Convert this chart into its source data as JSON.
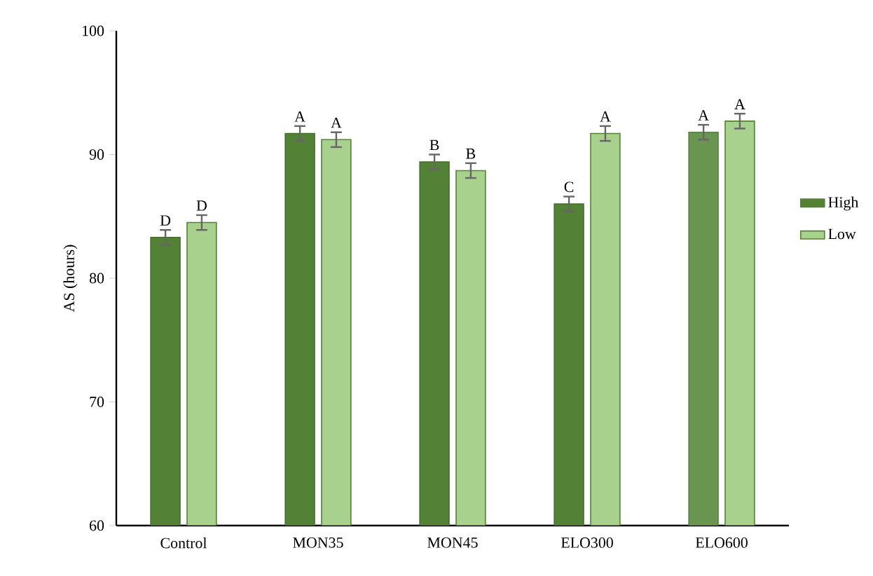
{
  "chart_data": {
    "type": "bar",
    "ylabel": "AS (hours)",
    "categories": [
      "Control",
      "MON35",
      "MON45",
      "ELO300",
      "ELO600"
    ],
    "series": [
      {
        "name": "High",
        "color": "#538135",
        "colors": [
          "#538135",
          "#538135",
          "#538135",
          "#538135",
          "#6a9550"
        ],
        "values": [
          83.3,
          91.7,
          89.4,
          86.0,
          91.8
        ],
        "errors": [
          0.6,
          0.6,
          0.6,
          0.6,
          0.6
        ],
        "value_labels": [
          "D",
          "A",
          "B",
          "C",
          "A"
        ]
      },
      {
        "name": "Low",
        "color": "#a9d18e",
        "values": [
          84.5,
          91.2,
          88.7,
          91.7,
          92.7
        ],
        "errors": [
          0.6,
          0.6,
          0.6,
          0.6,
          0.6
        ],
        "value_labels": [
          "D",
          "A",
          "B",
          "A",
          "A"
        ]
      }
    ],
    "ylim": [
      60,
      100
    ],
    "yticks": [
      60,
      70,
      80,
      90,
      100
    ],
    "legend": "right"
  }
}
